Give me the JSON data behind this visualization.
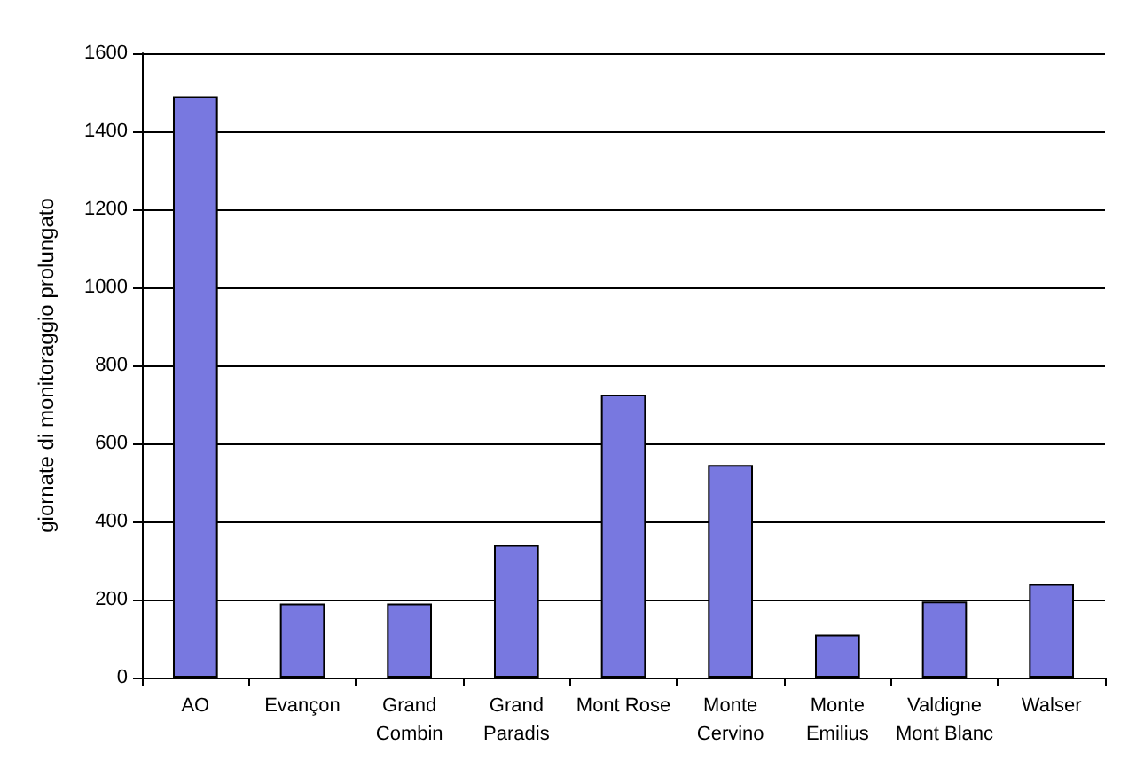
{
  "chart_data": {
    "type": "bar",
    "ylabel": "giornate di monitoraggio prolungato",
    "categories": [
      "AO",
      "Evançon",
      "Grand\nCombin",
      "Grand\nParadis",
      "Mont Rose",
      "Monte\nCervino",
      "Monte\nEmilius",
      "Valdigne\nMont Blanc",
      "Walser"
    ],
    "values": [
      1490,
      190,
      190,
      340,
      725,
      545,
      110,
      195,
      240
    ],
    "color": "#7878e0",
    "ylim": [
      0,
      1600
    ],
    "yticks": [
      0,
      200,
      400,
      600,
      800,
      1000,
      1200,
      1400,
      1600
    ],
    "grid": "y"
  }
}
